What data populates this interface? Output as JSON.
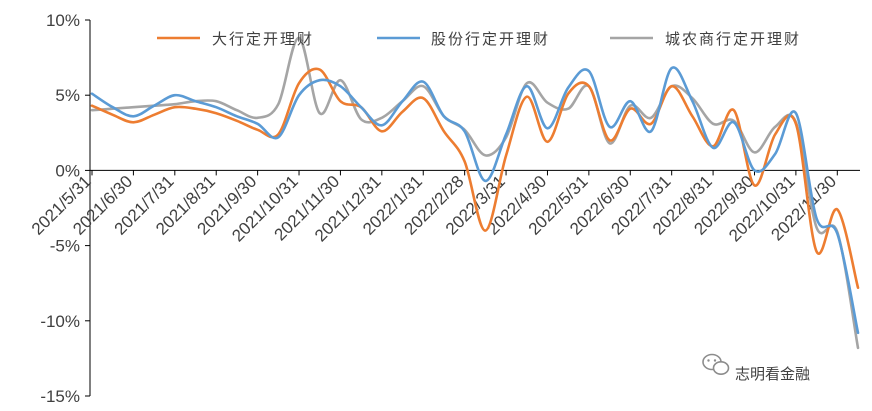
{
  "chart_data": {
    "type": "line",
    "title": "",
    "xlabel": "",
    "ylabel": "",
    "ylim": [
      -15,
      10
    ],
    "yticks": [
      "10%",
      "5%",
      "0%",
      "-5%",
      "-10%",
      "-15%"
    ],
    "grid": false,
    "legend_position": "top",
    "x_dates": [
      "2021/5/31",
      "2021/6/15",
      "2021/6/30",
      "2021/7/15",
      "2021/7/31",
      "2021/8/15",
      "2021/8/31",
      "2021/9/15",
      "2021/9/30",
      "2021/10/15",
      "2021/10/31",
      "2021/11/15",
      "2021/11/30",
      "2021/12/15",
      "2021/12/31",
      "2022/1/15",
      "2022/1/31",
      "2022/2/15",
      "2022/2/28",
      "2022/3/15",
      "2022/3/31",
      "2022/4/15",
      "2022/4/30",
      "2022/5/15",
      "2022/5/31",
      "2022/6/15",
      "2022/6/30",
      "2022/7/15",
      "2022/7/31",
      "2022/8/15",
      "2022/8/31",
      "2022/9/15",
      "2022/9/30",
      "2022/10/15",
      "2022/10/31",
      "2022/11/15",
      "2022/11/30",
      "2022/12/15"
    ],
    "x_tick_labels": [
      "2021/5/31",
      "2021/6/30",
      "2021/7/31",
      "2021/8/31",
      "2021/9/30",
      "2021/10/31",
      "2021/11/30",
      "2021/12/31",
      "2022/1/31",
      "2022/2/28",
      "2022/3/31",
      "2022/4/30",
      "2022/5/31",
      "2022/6/30",
      "2022/7/31",
      "2022/8/31",
      "2022/9/30",
      "2022/10/31",
      "2022/11/30"
    ],
    "series": [
      {
        "name": "大行定开理财",
        "color": "#ED7D31",
        "values": [
          4.3,
          3.7,
          3.2,
          3.7,
          4.2,
          4.1,
          3.8,
          3.3,
          2.7,
          2.4,
          5.8,
          6.7,
          4.6,
          4.2,
          2.6,
          3.9,
          4.8,
          2.6,
          0.6,
          -4.0,
          1.0,
          4.9,
          1.9,
          5.1,
          5.6,
          2.0,
          4.1,
          3.1,
          5.6,
          3.6,
          1.6,
          4.0,
          -1.0,
          2.4,
          3.1,
          -5.4,
          -2.6,
          -7.8
        ]
      },
      {
        "name": "股份行定开理财",
        "color": "#5B9BD5",
        "values": [
          5.1,
          4.2,
          3.6,
          4.3,
          5.0,
          4.6,
          4.2,
          3.6,
          3.1,
          2.2,
          5.0,
          6.0,
          5.6,
          4.2,
          3.0,
          4.6,
          5.9,
          3.6,
          2.6,
          -0.7,
          2.4,
          5.6,
          2.8,
          5.5,
          6.6,
          2.9,
          4.6,
          2.6,
          6.8,
          4.6,
          1.5,
          3.2,
          0.0,
          1.1,
          3.8,
          -3.2,
          -4.2,
          -10.8
        ]
      },
      {
        "name": "城农商行定开理财",
        "color": "#A5A5A5",
        "values": [
          4.0,
          4.1,
          4.2,
          4.3,
          4.4,
          4.6,
          4.6,
          4.0,
          3.5,
          4.4,
          8.8,
          3.8,
          6.0,
          3.4,
          3.5,
          4.6,
          5.6,
          3.6,
          2.7,
          1.0,
          2.2,
          5.8,
          4.5,
          4.1,
          5.6,
          1.8,
          4.3,
          3.5,
          5.6,
          4.8,
          3.1,
          3.3,
          1.2,
          2.9,
          3.2,
          -3.8,
          -4.1,
          -11.8
        ]
      }
    ]
  },
  "watermark": {
    "icon": "wechat-icon",
    "text": "志明看金融"
  }
}
